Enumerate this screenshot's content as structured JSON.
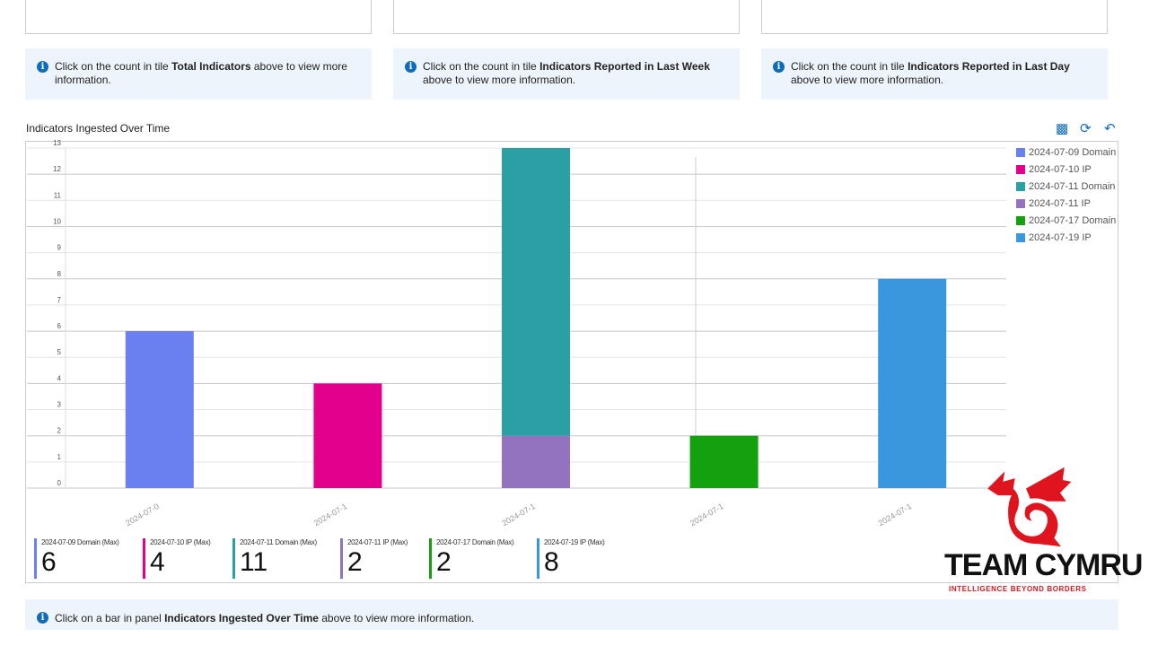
{
  "tiles": [
    {
      "pre": "Click on the count in tile ",
      "bold": "Total Indicators",
      "post": " above to view more information."
    },
    {
      "pre": "Click on the count in tile ",
      "bold": "Indicators Reported in Last Week",
      "post": " above to view more information."
    },
    {
      "pre": "Click on the count in tile ",
      "bold": "Indicators Reported in Last Day",
      "post": " above to view more information."
    }
  ],
  "panel_title": "Indicators Ingested Over Time",
  "bottom_info": {
    "pre": "Click on a bar in panel ",
    "bold": "Indicators Ingested Over Time",
    "post": " above to view more information."
  },
  "chart_data": {
    "type": "bar",
    "stacked": true,
    "categories": [
      "2024-07-09",
      "2024-07-10",
      "2024-07-11",
      "2024-07-17",
      "2024-07-19"
    ],
    "tick_labels": [
      "2024-07-0",
      "2024-07-1",
      "2024-07-1",
      "2024-07-1",
      "2024-07-1"
    ],
    "ylim": [
      0,
      13
    ],
    "yticks": [
      0,
      1,
      2,
      3,
      4,
      5,
      6,
      7,
      8,
      9,
      10,
      11,
      12,
      13
    ],
    "series": [
      {
        "name": "2024-07-09 Domain",
        "color": "#6a7ff0",
        "values": [
          6,
          0,
          0,
          0,
          0
        ]
      },
      {
        "name": "2024-07-10 IP",
        "color": "#e3008c",
        "values": [
          0,
          4,
          0,
          0,
          0
        ]
      },
      {
        "name": "2024-07-11 IP",
        "color": "#9373c0",
        "values": [
          0,
          0,
          2,
          0,
          0
        ]
      },
      {
        "name": "2024-07-11 Domain",
        "color": "#2aa0a4",
        "values": [
          0,
          0,
          11,
          0,
          0
        ]
      },
      {
        "name": "2024-07-17 Domain",
        "color": "#13a10e",
        "values": [
          0,
          0,
          0,
          2,
          0
        ]
      },
      {
        "name": "2024-07-19 IP",
        "color": "#3a96dd",
        "values": [
          0,
          0,
          0,
          0,
          8
        ]
      }
    ],
    "legend": [
      "2024-07-09 Domain",
      "2024-07-10 IP",
      "2024-07-11 Domain",
      "2024-07-11 IP",
      "2024-07-17 Domain",
      "2024-07-19 IP"
    ],
    "legend_colors": [
      "#6a7ff0",
      "#e3008c",
      "#2aa0a4",
      "#9373c0",
      "#13a10e",
      "#3a96dd"
    ],
    "legend_placement": "right"
  },
  "cards": [
    {
      "label": "2024-07-09 Domain (Max)",
      "value": "6",
      "color": "#6a7ff0"
    },
    {
      "label": "2024-07-10 IP (Max)",
      "value": "4",
      "color": "#e3008c"
    },
    {
      "label": "2024-07-11 Domain (Max)",
      "value": "11",
      "color": "#2aa0a4"
    },
    {
      "label": "2024-07-11 IP (Max)",
      "value": "2",
      "color": "#9373c0"
    },
    {
      "label": "2024-07-17 Domain (Max)",
      "value": "2",
      "color": "#13a10e"
    },
    {
      "label": "2024-07-19 IP (Max)",
      "value": "8",
      "color": "#3a96dd"
    }
  ],
  "logo": {
    "name": "TEAM CYMRU",
    "tagline": "INTELLIGENCE BEYOND BORDERS"
  }
}
